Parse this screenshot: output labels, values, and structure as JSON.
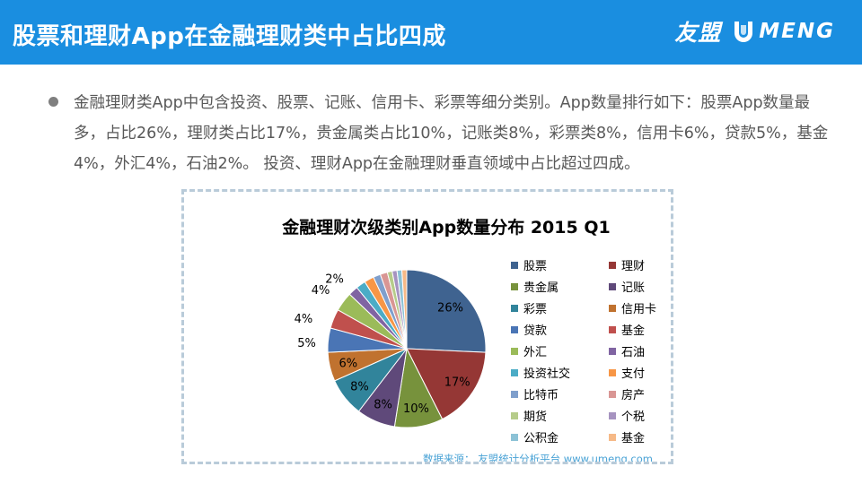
{
  "header": {
    "title": "股票和理财App在金融理财类中占比四成",
    "logo_cn": "友盟",
    "logo_en": "MENG"
  },
  "paragraph": "金融理财类App中包含投资、股票、记账、信用卡、彩票等细分类别。App数量排行如下：股票App数量最多，占比26%，理财类占比17%，贵金属类占比10%，记账类8%，彩票类8%，信用卡6%，贷款5%，基金4%，外汇4%，石油2%。 投资、理财App在金融理财垂直领域中占比超过四成。",
  "chart_data": {
    "type": "pie",
    "title": "金融理财次级类别App数量分布 2015 Q1",
    "source": "数据来源： 友盟统计分析平台 www.umeng.com",
    "legend_position": "right",
    "slices": [
      {
        "label": "股票",
        "value": 26,
        "display": "26%",
        "color": "#3f6390"
      },
      {
        "label": "理财",
        "value": 17,
        "display": "17%",
        "color": "#953735"
      },
      {
        "label": "贵金属",
        "value": 10,
        "display": "10%",
        "color": "#77923c"
      },
      {
        "label": "记账",
        "value": 8,
        "display": "8%",
        "color": "#5f497a"
      },
      {
        "label": "彩票",
        "value": 8,
        "display": "8%",
        "color": "#31849b"
      },
      {
        "label": "信用卡",
        "value": 6,
        "display": "6%",
        "color": "#c0722f"
      },
      {
        "label": "贷款",
        "value": 5,
        "display": "5%",
        "color": "#4a75b5"
      },
      {
        "label": "基金",
        "value": 4,
        "display": "4%",
        "color": "#c0504d"
      },
      {
        "label": "外汇",
        "value": 4,
        "display": "4%",
        "color": "#9bbb59"
      },
      {
        "label": "石油",
        "value": 2,
        "display": "2%",
        "color": "#8064a2"
      },
      {
        "label": "投资社交",
        "value": 2,
        "display": "",
        "color": "#4bacc6"
      },
      {
        "label": "支付",
        "value": 2,
        "display": "",
        "color": "#f79646"
      },
      {
        "label": "比特币",
        "value": 1.5,
        "display": "",
        "color": "#7f9fcc"
      },
      {
        "label": "房产",
        "value": 1.5,
        "display": "",
        "color": "#d99694"
      },
      {
        "label": "期货",
        "value": 1,
        "display": "",
        "color": "#b6cc8a"
      },
      {
        "label": "个税",
        "value": 1,
        "display": "",
        "color": "#a693c0"
      },
      {
        "label": "公积金",
        "value": 1,
        "display": "",
        "color": "#8cc2d6"
      },
      {
        "label": "基金",
        "value": 1,
        "display": "",
        "color": "#f6b987"
      }
    ]
  }
}
